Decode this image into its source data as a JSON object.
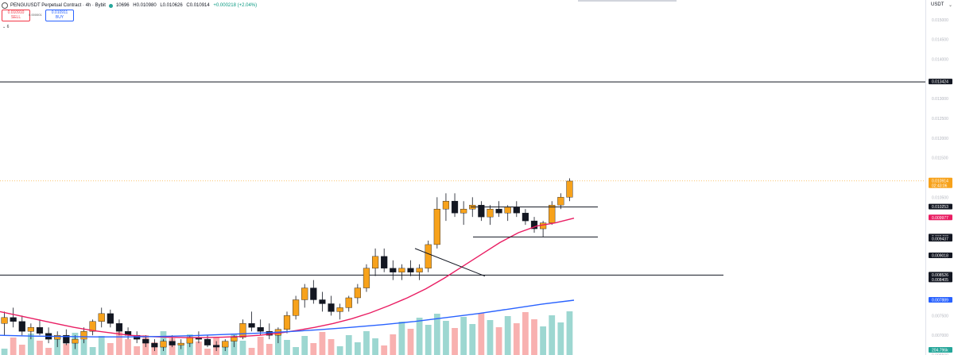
{
  "header": {
    "symbol": "PENGUUSDT Perpetual Contract · 4h · Bybit",
    "ohlc": {
      "open": "10696",
      "high": "H0.010980",
      "low": "L0.010626",
      "close": "C0.010914",
      "change": "+0.000218 (+2.04%)"
    }
  },
  "trade": {
    "sell_price": "0.010910",
    "sell_label": "SELL",
    "buy_price": "0.010911",
    "buy_label": "BUY",
    "spread": "0.000001"
  },
  "collapse_label": "⌄ 6",
  "currency": "USDT",
  "price_axis": {
    "ticks": [
      "0.015000",
      "0.014500",
      "0.014000",
      "0.013000",
      "0.012500",
      "0.012000",
      "0.011500",
      "0.010500",
      "0.008500",
      "0.007500",
      "0.007000",
      "0.006500"
    ],
    "badges": [
      {
        "label": "0.013424",
        "color": "#131722"
      },
      {
        "label": "0.010914",
        "sub": "02:43:06",
        "color": "#f7a21b"
      },
      {
        "label": "0.010253",
        "color": "#131722"
      },
      {
        "label": "0.009977",
        "color": "#e91e63"
      },
      {
        "label": "0.009492",
        "color": "#131722"
      },
      {
        "label": "0.009437",
        "color": "#131722"
      },
      {
        "label": "0.009018",
        "color": "#131722"
      },
      {
        "label": "0.008526",
        "color": "#131722"
      },
      {
        "label": "0.008405",
        "color": "#131722"
      },
      {
        "label": "0.007889",
        "color": "#2962ff"
      },
      {
        "label": "204.796k",
        "color": "#26a69a"
      }
    ]
  },
  "chart_data": {
    "type": "candlestick",
    "symbol": "PENGUUSDT",
    "interval": "4h",
    "ylim": [
      0.0065,
      0.0155
    ],
    "last_price": 0.010914,
    "ohlc_candles_approx": [
      [
        0.0073,
        0.0076,
        0.007,
        0.00745
      ],
      [
        0.00745,
        0.0077,
        0.0072,
        0.00735
      ],
      [
        0.00735,
        0.0075,
        0.007,
        0.0071
      ],
      [
        0.0071,
        0.0073,
        0.0069,
        0.0072
      ],
      [
        0.0072,
        0.0074,
        0.007,
        0.00705
      ],
      [
        0.00705,
        0.0072,
        0.0068,
        0.0069
      ],
      [
        0.0069,
        0.0071,
        0.0067,
        0.007
      ],
      [
        0.007,
        0.00715,
        0.00675,
        0.0068
      ],
      [
        0.0068,
        0.007,
        0.00665,
        0.0069
      ],
      [
        0.0069,
        0.0072,
        0.0068,
        0.0071
      ],
      [
        0.0071,
        0.0074,
        0.007,
        0.00735
      ],
      [
        0.00735,
        0.0077,
        0.0072,
        0.00755
      ],
      [
        0.00755,
        0.00765,
        0.0072,
        0.0073
      ],
      [
        0.0073,
        0.0074,
        0.007,
        0.0071
      ],
      [
        0.0071,
        0.0072,
        0.0069,
        0.007
      ],
      [
        0.007,
        0.0071,
        0.0068,
        0.0069
      ],
      [
        0.0069,
        0.007,
        0.0067,
        0.0068
      ],
      [
        0.0068,
        0.0069,
        0.0066,
        0.0067
      ],
      [
        0.0067,
        0.0069,
        0.0066,
        0.00685
      ],
      [
        0.00685,
        0.007,
        0.0067,
        0.00675
      ],
      [
        0.00675,
        0.0069,
        0.00665,
        0.0068
      ],
      [
        0.0068,
        0.007,
        0.0067,
        0.00695
      ],
      [
        0.00695,
        0.0071,
        0.0068,
        0.0069
      ],
      [
        0.0069,
        0.007,
        0.0067,
        0.00675
      ],
      [
        0.00675,
        0.00685,
        0.0066,
        0.0067
      ],
      [
        0.0067,
        0.0069,
        0.0066,
        0.00685
      ],
      [
        0.00685,
        0.007,
        0.0067,
        0.00695
      ],
      [
        0.00695,
        0.0074,
        0.0069,
        0.0073
      ],
      [
        0.0073,
        0.0076,
        0.0071,
        0.0072
      ],
      [
        0.0072,
        0.0074,
        0.007,
        0.0071
      ],
      [
        0.0071,
        0.0073,
        0.0069,
        0.007
      ],
      [
        0.007,
        0.0072,
        0.0068,
        0.00715
      ],
      [
        0.00715,
        0.0076,
        0.00705,
        0.0075
      ],
      [
        0.0075,
        0.008,
        0.0074,
        0.0079
      ],
      [
        0.0079,
        0.0083,
        0.0077,
        0.0082
      ],
      [
        0.0082,
        0.0084,
        0.0078,
        0.0079
      ],
      [
        0.0079,
        0.0081,
        0.0076,
        0.0078
      ],
      [
        0.0078,
        0.008,
        0.0075,
        0.0076
      ],
      [
        0.0076,
        0.0078,
        0.0074,
        0.0077
      ],
      [
        0.0077,
        0.008,
        0.0076,
        0.00795
      ],
      [
        0.00795,
        0.0083,
        0.0078,
        0.0082
      ],
      [
        0.0082,
        0.0088,
        0.0081,
        0.0087
      ],
      [
        0.0087,
        0.0092,
        0.0085,
        0.009
      ],
      [
        0.009,
        0.0092,
        0.0086,
        0.0087
      ],
      [
        0.0087,
        0.0089,
        0.0084,
        0.0086
      ],
      [
        0.0086,
        0.0088,
        0.0084,
        0.0087
      ],
      [
        0.0087,
        0.0089,
        0.0085,
        0.0086
      ],
      [
        0.0086,
        0.0088,
        0.0084,
        0.0087
      ],
      [
        0.0087,
        0.0094,
        0.0086,
        0.0093
      ],
      [
        0.0093,
        0.0105,
        0.0092,
        0.0102
      ],
      [
        0.0102,
        0.0106,
        0.0099,
        0.0104
      ],
      [
        0.0104,
        0.0106,
        0.01,
        0.0101
      ],
      [
        0.0101,
        0.0104,
        0.0098,
        0.0102
      ],
      [
        0.0102,
        0.0105,
        0.01,
        0.0103
      ],
      [
        0.0103,
        0.0104,
        0.0099,
        0.01
      ],
      [
        0.01,
        0.0103,
        0.0098,
        0.0102
      ],
      [
        0.0102,
        0.0104,
        0.01,
        0.0101
      ],
      [
        0.0101,
        0.0103,
        0.0099,
        0.01025
      ],
      [
        0.01025,
        0.0104,
        0.01,
        0.0101
      ],
      [
        0.0101,
        0.0102,
        0.0098,
        0.0099
      ],
      [
        0.0099,
        0.01,
        0.0096,
        0.0097
      ],
      [
        0.0097,
        0.0099,
        0.0095,
        0.00985
      ],
      [
        0.00985,
        0.0104,
        0.0098,
        0.0103
      ],
      [
        0.0103,
        0.0106,
        0.0102,
        0.0105
      ],
      [
        0.0105,
        0.01098,
        0.0104,
        0.01091
      ]
    ],
    "series": [
      {
        "name": "MA",
        "color": "#e91e63",
        "values": [
          0.0076,
          0.0075,
          0.0074,
          0.0073,
          0.0072,
          0.00712,
          0.00706,
          0.007,
          0.00697,
          0.00695,
          0.00694,
          0.00694,
          0.00695,
          0.00697,
          0.007,
          0.00705,
          0.00712,
          0.0072,
          0.0073,
          0.00742,
          0.00757,
          0.00775,
          0.00795,
          0.00818,
          0.00845,
          0.00875,
          0.00905,
          0.00935,
          0.0096,
          0.00977,
          0.00985,
          0.00997
        ]
      },
      {
        "name": "MA",
        "color": "#2962ff",
        "values": [
          0.007,
          0.00698,
          0.00697,
          0.00696,
          0.00696,
          0.00697,
          0.00699,
          0.00702,
          0.00705,
          0.00709,
          0.00714,
          0.0072,
          0.00727,
          0.00735,
          0.00745,
          0.00755,
          0.00767,
          0.00779,
          0.00789
        ]
      }
    ],
    "horizontal_levels": [
      0.013424,
      0.008526
    ],
    "trendlines": [
      {
        "from": [
          0.0092,
          0.0092
        ],
        "to": [
          0.0085,
          0.0085
        ]
      },
      {
        "from": [
          0.010253,
          0.010253
        ],
        "to": [
          0.010253,
          0.010253
        ]
      },
      {
        "from": [
          0.009492,
          0.009492
        ],
        "to": [
          0.009492,
          0.009492
        ]
      }
    ]
  }
}
